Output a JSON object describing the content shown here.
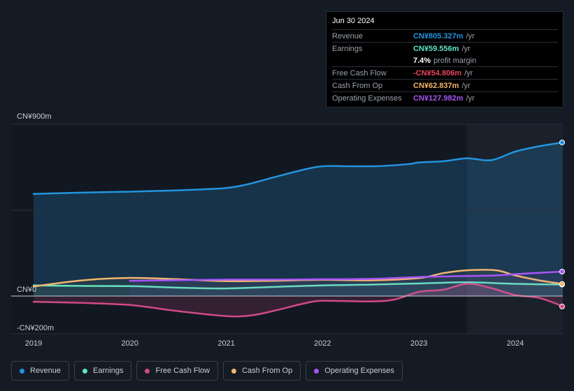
{
  "tooltip": {
    "date": "Jun 30 2024",
    "rows": [
      {
        "label": "Revenue",
        "value": "CN¥805.327m",
        "unit": "/yr",
        "color": "#2394df"
      },
      {
        "label": "Earnings",
        "value": "CN¥59.556m",
        "unit": "/yr",
        "color": "#5ee6c4"
      },
      {
        "label": "",
        "value": "7.4%",
        "unit": "profit margin",
        "color": "#ffffff"
      },
      {
        "label": "Free Cash Flow",
        "value": "-CN¥54.806m",
        "unit": "/yr",
        "color": "#e8445a"
      },
      {
        "label": "Cash From Op",
        "value": "CN¥62.837m",
        "unit": "/yr",
        "color": "#f2b66d"
      },
      {
        "label": "Operating Expenses",
        "value": "CN¥127.982m",
        "unit": "/yr",
        "color": "#a855f7"
      }
    ]
  },
  "legend": [
    {
      "label": "Revenue",
      "color": "#2394df"
    },
    {
      "label": "Earnings",
      "color": "#5ee6c4"
    },
    {
      "label": "Free Cash Flow",
      "color": "#d04a86"
    },
    {
      "label": "Cash From Op",
      "color": "#f2b66d"
    },
    {
      "label": "Operating Expenses",
      "color": "#a855f7"
    }
  ],
  "chart_data": {
    "type": "line",
    "ytick_labels": [
      "CN¥900m",
      "CN¥0",
      "-CN¥200m"
    ],
    "xtick_labels": [
      "2019",
      "2020",
      "2021",
      "2022",
      "2023",
      "2024"
    ],
    "x_years": [
      2019,
      2020,
      2021,
      2022,
      2023,
      2024
    ],
    "ylim": [
      -200,
      900
    ],
    "xlim": [
      2018.77,
      2024.5
    ],
    "highlight_from": 2023.5,
    "series": [
      {
        "name": "Revenue",
        "color": "#2394df",
        "x": [
          2019.0,
          2019.5,
          2020.0,
          2020.5,
          2020.8,
          2021.0,
          2021.2,
          2021.5,
          2021.8,
          2022.0,
          2022.3,
          2022.6,
          2022.9,
          2023.0,
          2023.25,
          2023.5,
          2023.75,
          2024.0,
          2024.25,
          2024.5
        ],
        "y": [
          535,
          542,
          547,
          554,
          560,
          566,
          583,
          623,
          662,
          680,
          680,
          681,
          692,
          700,
          706,
          722,
          712,
          757,
          785,
          805
        ]
      },
      {
        "name": "Earnings",
        "color": "#5ee6c4",
        "x": [
          2019.0,
          2019.5,
          2020.0,
          2020.5,
          2021.0,
          2021.5,
          2022.0,
          2022.5,
          2023.0,
          2023.5,
          2024.0,
          2024.5
        ],
        "y": [
          56,
          53,
          52,
          44,
          40,
          48,
          56,
          60,
          66,
          72,
          64,
          60
        ]
      },
      {
        "name": "Free Cash Flow",
        "color": "#d04a86",
        "x": [
          2019.0,
          2019.5,
          2020.0,
          2020.5,
          2021.0,
          2021.25,
          2021.5,
          2021.8,
          2022.0,
          2022.5,
          2022.75,
          2023.0,
          2023.25,
          2023.5,
          2023.75,
          2024.0,
          2024.25,
          2024.5
        ],
        "y": [
          -30,
          -36,
          -47,
          -79,
          -105,
          -102,
          -77,
          -40,
          -25,
          -28,
          -18,
          22,
          33,
          64,
          42,
          5,
          -10,
          -55
        ]
      },
      {
        "name": "Cash From Op",
        "color": "#f2b66d",
        "x": [
          2019.0,
          2019.5,
          2020.0,
          2020.5,
          2021.0,
          2021.5,
          2022.0,
          2022.5,
          2023.0,
          2023.25,
          2023.5,
          2023.8,
          2024.0,
          2024.25,
          2024.5
        ],
        "y": [
          50,
          82,
          95,
          88,
          78,
          80,
          85,
          82,
          94,
          120,
          135,
          135,
          108,
          82,
          63
        ]
      },
      {
        "name": "Operating Expenses",
        "color": "#a855f7",
        "x": [
          2020.0,
          2020.5,
          2021.0,
          2021.5,
          2022.0,
          2022.5,
          2023.0,
          2023.5,
          2023.8,
          2024.0,
          2024.25,
          2024.5
        ],
        "y": [
          80,
          83,
          86,
          86,
          88,
          90,
          100,
          105,
          108,
          115,
          122,
          128
        ]
      }
    ]
  }
}
